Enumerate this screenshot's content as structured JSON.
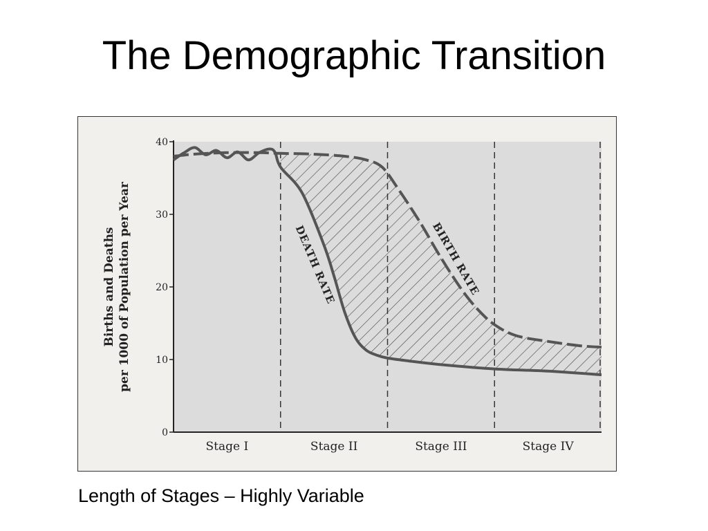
{
  "slide": {
    "title": "The Demographic Transition",
    "caption": "Length of Stages – Highly Variable"
  },
  "chart_data": {
    "type": "line",
    "ylabel_line1": "Births and Deaths",
    "ylabel_line2": "per 1000 of Population per Year",
    "ylim": [
      0,
      40
    ],
    "yticks": [
      0,
      10,
      20,
      30,
      40
    ],
    "xlim": [
      0,
      4
    ],
    "stages": [
      "Stage I",
      "Stage II",
      "Stage III",
      "Stage IV"
    ],
    "stage_boundaries": [
      1,
      2,
      3,
      4
    ],
    "grid": false,
    "shaded_region_between_series": "hatched",
    "series": [
      {
        "name": "DEATH RATE",
        "style": "solid",
        "x": [
          0,
          0.1,
          0.2,
          0.3,
          0.4,
          0.5,
          0.6,
          0.7,
          0.8,
          0.9,
          0.95,
          1.0,
          1.2,
          1.4,
          1.5,
          1.6,
          1.7,
          1.8,
          1.9,
          2.0,
          2.2,
          2.5,
          3.0,
          3.5,
          4.0
        ],
        "values": [
          37.5,
          38.5,
          39.2,
          38.2,
          38.8,
          37.8,
          38.6,
          37.5,
          38.5,
          39.0,
          38.5,
          36.5,
          33.0,
          26.0,
          21.5,
          16.5,
          13.0,
          11.3,
          10.6,
          10.2,
          9.8,
          9.3,
          8.7,
          8.4,
          7.9
        ]
      },
      {
        "name": "BIRTH RATE",
        "style": "dashed",
        "x": [
          0,
          0.2,
          0.5,
          0.8,
          1.0,
          1.3,
          1.6,
          1.8,
          1.95,
          2.1,
          2.3,
          2.5,
          2.7,
          2.85,
          3.0,
          3.2,
          3.5,
          3.8,
          4.0
        ],
        "values": [
          38.0,
          38.3,
          38.5,
          38.5,
          38.4,
          38.3,
          38.0,
          37.5,
          36.5,
          33.5,
          29.0,
          24.0,
          19.5,
          16.8,
          14.8,
          13.3,
          12.5,
          11.9,
          11.7
        ]
      }
    ]
  }
}
